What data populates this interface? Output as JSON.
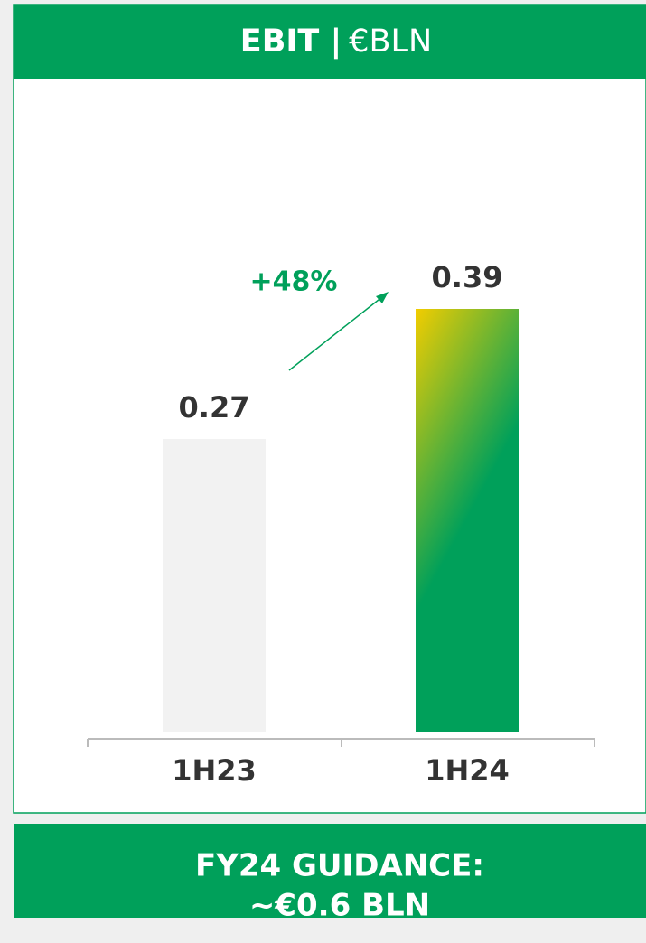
{
  "chart_data": {
    "type": "bar",
    "title": "EBIT |",
    "unit": "€BLN",
    "categories": [
      "1H23",
      "1H24"
    ],
    "values": [
      0.27,
      0.39
    ],
    "colors": [
      "#f2f2f2",
      "#00a05a"
    ],
    "gradient_top": "#f2cd00",
    "ylim": [
      0,
      0.5
    ],
    "annotation": "+48%",
    "accent": "#00a05a"
  },
  "footer": [
    "FY24 GUIDANCE:",
    "~€0.6 BLN"
  ]
}
